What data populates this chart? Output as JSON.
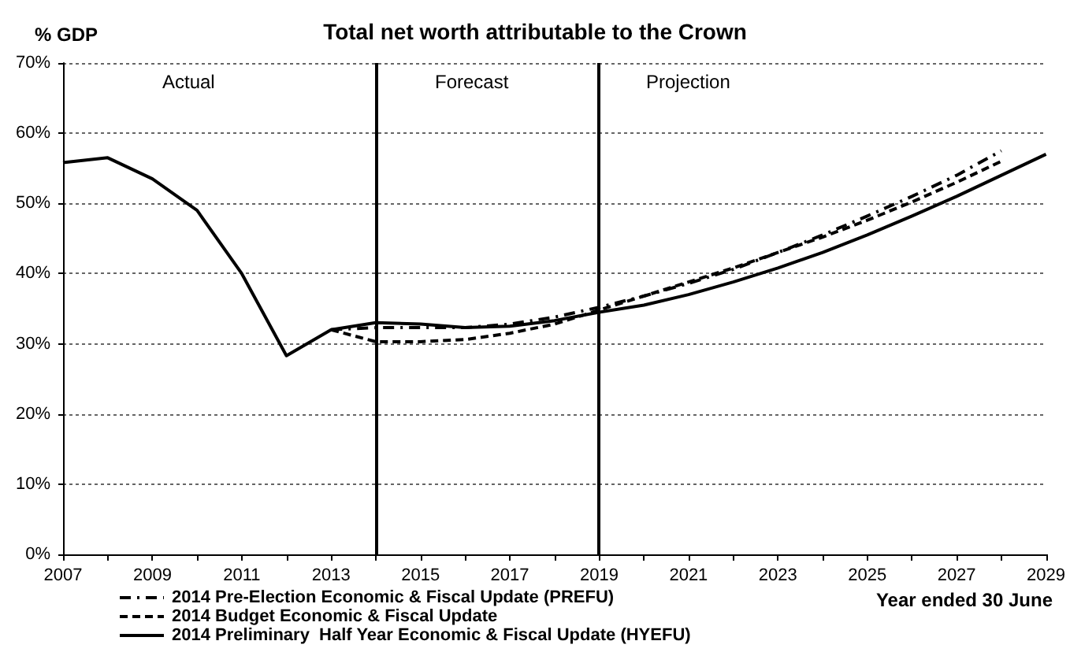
{
  "chart_data": {
    "type": "line",
    "title": "Total net worth attributable to the Crown",
    "ylabel": "% GDP",
    "xlabel": "Year ended 30 June",
    "x": [
      2007,
      2008,
      2009,
      2010,
      2011,
      2012,
      2013,
      2014,
      2015,
      2016,
      2017,
      2018,
      2019,
      2020,
      2021,
      2022,
      2023,
      2024,
      2025,
      2026,
      2027,
      2028,
      2029
    ],
    "series": [
      {
        "name": "2014 Pre-Election Economic & Fiscal Update (PREFU)",
        "color": "#000000",
        "line_style": "dotted",
        "x": [
          2013,
          2014,
          2015,
          2016,
          2017,
          2018,
          2019,
          2020,
          2021,
          2022,
          2023,
          2024,
          2025,
          2026,
          2027,
          2028
        ],
        "values": [
          32,
          32.3,
          32.3,
          32.3,
          32.8,
          33.8,
          35.2,
          36.8,
          38.6,
          40.6,
          43,
          45.5,
          48.2,
          51,
          54,
          57.5
        ]
      },
      {
        "name": "2014 Budget Economic & Fiscal Update",
        "color": "#000000",
        "line_style": "dashed",
        "x": [
          2013,
          2014,
          2015,
          2016,
          2017,
          2018,
          2019,
          2020,
          2021,
          2022,
          2023,
          2024,
          2025,
          2026,
          2027,
          2028
        ],
        "values": [
          32,
          30.3,
          30.3,
          30.6,
          31.5,
          32.8,
          34.8,
          36.8,
          38.8,
          40.8,
          43,
          45.2,
          47.6,
          50.2,
          53,
          56
        ]
      },
      {
        "name": "2014 Preliminary  Half Year Economic & Fiscal Update (HYEFU)",
        "color": "#000000",
        "line_style": "solid",
        "values": [
          55.8,
          56.5,
          53.5,
          49,
          40,
          28.3,
          32,
          33,
          32.8,
          32.3,
          32.5,
          33.3,
          34.5,
          35.5,
          37,
          38.8,
          40.8,
          43,
          45.5,
          48.2,
          51,
          54,
          57
        ]
      }
    ],
    "xlim": [
      2007,
      2029
    ],
    "xticks": [
      2007,
      {
        "value": 2008,
        "label": null
      },
      2009,
      {
        "value": 2010,
        "label": null
      },
      2011,
      {
        "value": 2012,
        "label": null
      },
      2013,
      {
        "value": 2014,
        "label": null
      },
      2015,
      {
        "value": 2016,
        "label": null
      },
      2017,
      {
        "value": 2018,
        "label": null
      },
      2019,
      {
        "value": 2020,
        "label": null
      },
      2021,
      {
        "value": 2022,
        "label": null
      },
      2023,
      {
        "value": 2024,
        "label": null
      },
      2025,
      {
        "value": 2026,
        "label": null
      },
      2027,
      {
        "value": 2028,
        "label": null
      },
      2029
    ],
    "ylim": [
      0,
      70
    ],
    "yticks": [
      {
        "value": 0,
        "label": "0%"
      },
      {
        "value": 10,
        "label": "10%"
      },
      {
        "value": 20,
        "label": "20%"
      },
      {
        "value": 30,
        "label": "30%"
      },
      {
        "value": 40,
        "label": "40%"
      },
      {
        "value": 50,
        "label": "50%"
      },
      {
        "value": 60,
        "label": "60%"
      },
      {
        "value": 70,
        "label": "70%"
      }
    ],
    "grid": "y",
    "legend": "bottom left",
    "marker": "none",
    "ref_lines": [
      {
        "axis": "x",
        "value": 2014,
        "color": "#000000"
      },
      {
        "axis": "x",
        "value": 2019,
        "color": "#000000"
      }
    ],
    "annotations": [
      "Actual",
      "Forecast",
      "Projection"
    ]
  }
}
